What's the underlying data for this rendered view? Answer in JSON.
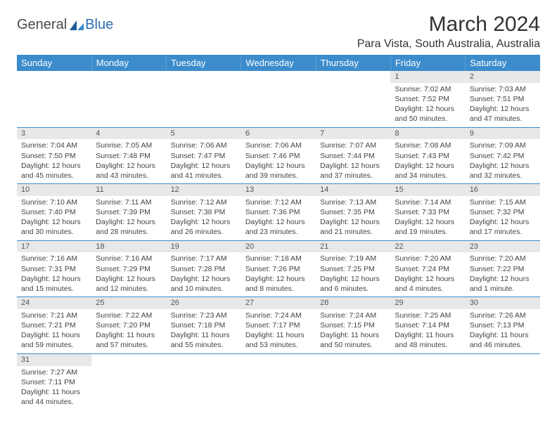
{
  "logo": {
    "general": "General",
    "blue": "Blue"
  },
  "title": {
    "month": "March 2024",
    "location": "Para Vista, South Australia, Australia"
  },
  "colors": {
    "header_bg": "#3c8ccc",
    "daynum_bg": "#e8e8e8",
    "border": "#3c8ccc"
  },
  "weekdays": [
    "Sunday",
    "Monday",
    "Tuesday",
    "Wednesday",
    "Thursday",
    "Friday",
    "Saturday"
  ],
  "weeks": [
    [
      null,
      null,
      null,
      null,
      null,
      {
        "d": "1",
        "sr": "Sunrise: 7:02 AM",
        "ss": "Sunset: 7:52 PM",
        "dl": "Daylight: 12 hours and 50 minutes."
      },
      {
        "d": "2",
        "sr": "Sunrise: 7:03 AM",
        "ss": "Sunset: 7:51 PM",
        "dl": "Daylight: 12 hours and 47 minutes."
      }
    ],
    [
      {
        "d": "3",
        "sr": "Sunrise: 7:04 AM",
        "ss": "Sunset: 7:50 PM",
        "dl": "Daylight: 12 hours and 45 minutes."
      },
      {
        "d": "4",
        "sr": "Sunrise: 7:05 AM",
        "ss": "Sunset: 7:48 PM",
        "dl": "Daylight: 12 hours and 43 minutes."
      },
      {
        "d": "5",
        "sr": "Sunrise: 7:06 AM",
        "ss": "Sunset: 7:47 PM",
        "dl": "Daylight: 12 hours and 41 minutes."
      },
      {
        "d": "6",
        "sr": "Sunrise: 7:06 AM",
        "ss": "Sunset: 7:46 PM",
        "dl": "Daylight: 12 hours and 39 minutes."
      },
      {
        "d": "7",
        "sr": "Sunrise: 7:07 AM",
        "ss": "Sunset: 7:44 PM",
        "dl": "Daylight: 12 hours and 37 minutes."
      },
      {
        "d": "8",
        "sr": "Sunrise: 7:08 AM",
        "ss": "Sunset: 7:43 PM",
        "dl": "Daylight: 12 hours and 34 minutes."
      },
      {
        "d": "9",
        "sr": "Sunrise: 7:09 AM",
        "ss": "Sunset: 7:42 PM",
        "dl": "Daylight: 12 hours and 32 minutes."
      }
    ],
    [
      {
        "d": "10",
        "sr": "Sunrise: 7:10 AM",
        "ss": "Sunset: 7:40 PM",
        "dl": "Daylight: 12 hours and 30 minutes."
      },
      {
        "d": "11",
        "sr": "Sunrise: 7:11 AM",
        "ss": "Sunset: 7:39 PM",
        "dl": "Daylight: 12 hours and 28 minutes."
      },
      {
        "d": "12",
        "sr": "Sunrise: 7:12 AM",
        "ss": "Sunset: 7:38 PM",
        "dl": "Daylight: 12 hours and 26 minutes."
      },
      {
        "d": "13",
        "sr": "Sunrise: 7:12 AM",
        "ss": "Sunset: 7:36 PM",
        "dl": "Daylight: 12 hours and 23 minutes."
      },
      {
        "d": "14",
        "sr": "Sunrise: 7:13 AM",
        "ss": "Sunset: 7:35 PM",
        "dl": "Daylight: 12 hours and 21 minutes."
      },
      {
        "d": "15",
        "sr": "Sunrise: 7:14 AM",
        "ss": "Sunset: 7:33 PM",
        "dl": "Daylight: 12 hours and 19 minutes."
      },
      {
        "d": "16",
        "sr": "Sunrise: 7:15 AM",
        "ss": "Sunset: 7:32 PM",
        "dl": "Daylight: 12 hours and 17 minutes."
      }
    ],
    [
      {
        "d": "17",
        "sr": "Sunrise: 7:16 AM",
        "ss": "Sunset: 7:31 PM",
        "dl": "Daylight: 12 hours and 15 minutes."
      },
      {
        "d": "18",
        "sr": "Sunrise: 7:16 AM",
        "ss": "Sunset: 7:29 PM",
        "dl": "Daylight: 12 hours and 12 minutes."
      },
      {
        "d": "19",
        "sr": "Sunrise: 7:17 AM",
        "ss": "Sunset: 7:28 PM",
        "dl": "Daylight: 12 hours and 10 minutes."
      },
      {
        "d": "20",
        "sr": "Sunrise: 7:18 AM",
        "ss": "Sunset: 7:26 PM",
        "dl": "Daylight: 12 hours and 8 minutes."
      },
      {
        "d": "21",
        "sr": "Sunrise: 7:19 AM",
        "ss": "Sunset: 7:25 PM",
        "dl": "Daylight: 12 hours and 6 minutes."
      },
      {
        "d": "22",
        "sr": "Sunrise: 7:20 AM",
        "ss": "Sunset: 7:24 PM",
        "dl": "Daylight: 12 hours and 4 minutes."
      },
      {
        "d": "23",
        "sr": "Sunrise: 7:20 AM",
        "ss": "Sunset: 7:22 PM",
        "dl": "Daylight: 12 hours and 1 minute."
      }
    ],
    [
      {
        "d": "24",
        "sr": "Sunrise: 7:21 AM",
        "ss": "Sunset: 7:21 PM",
        "dl": "Daylight: 11 hours and 59 minutes."
      },
      {
        "d": "25",
        "sr": "Sunrise: 7:22 AM",
        "ss": "Sunset: 7:20 PM",
        "dl": "Daylight: 11 hours and 57 minutes."
      },
      {
        "d": "26",
        "sr": "Sunrise: 7:23 AM",
        "ss": "Sunset: 7:18 PM",
        "dl": "Daylight: 11 hours and 55 minutes."
      },
      {
        "d": "27",
        "sr": "Sunrise: 7:24 AM",
        "ss": "Sunset: 7:17 PM",
        "dl": "Daylight: 11 hours and 53 minutes."
      },
      {
        "d": "28",
        "sr": "Sunrise: 7:24 AM",
        "ss": "Sunset: 7:15 PM",
        "dl": "Daylight: 11 hours and 50 minutes."
      },
      {
        "d": "29",
        "sr": "Sunrise: 7:25 AM",
        "ss": "Sunset: 7:14 PM",
        "dl": "Daylight: 11 hours and 48 minutes."
      },
      {
        "d": "30",
        "sr": "Sunrise: 7:26 AM",
        "ss": "Sunset: 7:13 PM",
        "dl": "Daylight: 11 hours and 46 minutes."
      }
    ],
    [
      {
        "d": "31",
        "sr": "Sunrise: 7:27 AM",
        "ss": "Sunset: 7:11 PM",
        "dl": "Daylight: 11 hours and 44 minutes."
      },
      null,
      null,
      null,
      null,
      null,
      null
    ]
  ]
}
